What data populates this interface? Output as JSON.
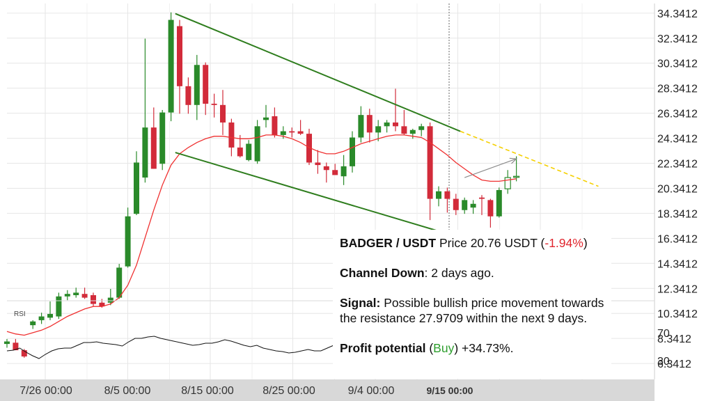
{
  "chart_data": {
    "type": "candlestick",
    "y_axis_labels": [
      "34.3412",
      "32.3412",
      "30.3412",
      "28.3412",
      "26.3412",
      "24.3412",
      "22.3412",
      "20.3412",
      "18.3412",
      "16.3412",
      "14.3412",
      "12.3412",
      "10.3412",
      "8.3412",
      "6.3412"
    ],
    "ylim": [
      4.9,
      35.0
    ],
    "x_axis_labels": [
      "7/26 00:00",
      "8/5 00:00",
      "8/15 00:00",
      "8/25 00:00",
      "9/4 00:00",
      "9/15 00:00"
    ],
    "candles": [
      {
        "o": 7.9,
        "h": 8.3,
        "l": 7.6,
        "c": 8.1
      },
      {
        "o": 8.0,
        "h": 8.3,
        "l": 7.5,
        "c": 7.4
      },
      {
        "o": 7.4,
        "h": 7.5,
        "l": 6.8,
        "c": 6.9
      },
      {
        "o": 9.4,
        "h": 9.8,
        "l": 9.1,
        "c": 9.7
      },
      {
        "o": 9.8,
        "h": 10.4,
        "l": 9.5,
        "c": 10.1
      },
      {
        "o": 10.0,
        "h": 11.3,
        "l": 9.8,
        "c": 10.3
      },
      {
        "o": 10.1,
        "h": 12.0,
        "l": 9.9,
        "c": 11.7
      },
      {
        "o": 11.7,
        "h": 12.2,
        "l": 11.4,
        "c": 11.9
      },
      {
        "o": 11.8,
        "h": 12.4,
        "l": 11.6,
        "c": 12.0
      },
      {
        "o": 11.9,
        "h": 12.4,
        "l": 11.5,
        "c": 11.6
      },
      {
        "o": 11.8,
        "h": 12.0,
        "l": 10.9,
        "c": 11.1
      },
      {
        "o": 11.2,
        "h": 11.5,
        "l": 10.8,
        "c": 10.9
      },
      {
        "o": 11.2,
        "h": 12.3,
        "l": 11.0,
        "c": 11.6
      },
      {
        "o": 11.6,
        "h": 14.3,
        "l": 11.5,
        "c": 14.0
      },
      {
        "o": 14.1,
        "h": 18.8,
        "l": 14.0,
        "c": 18.1
      },
      {
        "o": 18.3,
        "h": 23.3,
        "l": 18.2,
        "c": 22.4
      },
      {
        "o": 21.2,
        "h": 32.3,
        "l": 20.8,
        "c": 25.2
      },
      {
        "o": 25.2,
        "h": 26.8,
        "l": 21.9,
        "c": 21.9
      },
      {
        "o": 22.3,
        "h": 26.6,
        "l": 21.8,
        "c": 26.4
      },
      {
        "o": 26.4,
        "h": 34.4,
        "l": 25.7,
        "c": 33.8
      },
      {
        "o": 33.3,
        "h": 33.8,
        "l": 26.3,
        "c": 28.5
      },
      {
        "o": 28.5,
        "h": 29.2,
        "l": 26.3,
        "c": 27.0
      },
      {
        "o": 27.0,
        "h": 31.0,
        "l": 25.8,
        "c": 30.2
      },
      {
        "o": 30.2,
        "h": 30.4,
        "l": 26.2,
        "c": 27.1
      },
      {
        "o": 27.1,
        "h": 27.9,
        "l": 26.0,
        "c": 27.0
      },
      {
        "o": 27.0,
        "h": 28.2,
        "l": 24.6,
        "c": 25.6
      },
      {
        "o": 25.6,
        "h": 25.9,
        "l": 22.9,
        "c": 23.6
      },
      {
        "o": 23.6,
        "h": 24.6,
        "l": 22.8,
        "c": 22.9
      },
      {
        "o": 22.6,
        "h": 24.2,
        "l": 22.5,
        "c": 23.9
      },
      {
        "o": 22.5,
        "h": 25.8,
        "l": 22.3,
        "c": 25.3
      },
      {
        "o": 25.8,
        "h": 27.0,
        "l": 25.2,
        "c": 26.0
      },
      {
        "o": 26.1,
        "h": 26.8,
        "l": 24.4,
        "c": 24.6
      },
      {
        "o": 24.6,
        "h": 25.3,
        "l": 24.3,
        "c": 24.9
      },
      {
        "o": 24.9,
        "h": 25.2,
        "l": 24.4,
        "c": 24.8
      },
      {
        "o": 24.9,
        "h": 25.8,
        "l": 24.6,
        "c": 24.7
      },
      {
        "o": 24.7,
        "h": 25.1,
        "l": 22.2,
        "c": 22.4
      },
      {
        "o": 22.4,
        "h": 23.4,
        "l": 21.5,
        "c": 22.2
      },
      {
        "o": 22.1,
        "h": 22.4,
        "l": 20.8,
        "c": 21.8
      },
      {
        "o": 21.8,
        "h": 22.3,
        "l": 21.4,
        "c": 21.4
      },
      {
        "o": 21.3,
        "h": 23.0,
        "l": 20.6,
        "c": 22.1
      },
      {
        "o": 22.1,
        "h": 24.9,
        "l": 21.6,
        "c": 24.4
      },
      {
        "o": 24.4,
        "h": 26.9,
        "l": 24.0,
        "c": 26.2
      },
      {
        "o": 26.2,
        "h": 26.7,
        "l": 24.0,
        "c": 24.8
      },
      {
        "o": 24.8,
        "h": 25.8,
        "l": 24.1,
        "c": 25.3
      },
      {
        "o": 25.3,
        "h": 25.8,
        "l": 24.8,
        "c": 25.6
      },
      {
        "o": 25.6,
        "h": 28.3,
        "l": 24.9,
        "c": 25.3
      },
      {
        "o": 25.3,
        "h": 26.6,
        "l": 24.6,
        "c": 24.7
      },
      {
        "o": 24.7,
        "h": 25.1,
        "l": 24.3,
        "c": 25.0
      },
      {
        "o": 25.0,
        "h": 25.5,
        "l": 24.5,
        "c": 25.3
      },
      {
        "o": 25.3,
        "h": 25.6,
        "l": 17.8,
        "c": 19.5
      },
      {
        "o": 19.5,
        "h": 20.5,
        "l": 18.9,
        "c": 20.1
      },
      {
        "o": 20.1,
        "h": 20.4,
        "l": 18.4,
        "c": 19.5
      },
      {
        "o": 19.5,
        "h": 19.9,
        "l": 18.2,
        "c": 18.6
      },
      {
        "o": 18.6,
        "h": 19.6,
        "l": 18.3,
        "c": 19.4
      },
      {
        "o": 18.8,
        "h": 19.4,
        "l": 18.3,
        "c": 19.1
      },
      {
        "o": 19.6,
        "h": 19.8,
        "l": 18.2,
        "c": 19.5
      },
      {
        "o": 19.4,
        "h": 19.5,
        "l": 17.2,
        "c": 18.1
      },
      {
        "o": 18.1,
        "h": 20.4,
        "l": 18.0,
        "c": 20.2
      },
      {
        "o": 20.3,
        "h": 21.8,
        "l": 19.9,
        "c": 21.2
      },
      {
        "o": 21.3,
        "h": 22.9,
        "l": 20.9,
        "c": 21.3
      }
    ],
    "moving_average": [
      8.9,
      8.7,
      8.6,
      8.8,
      9.0,
      9.3,
      9.7,
      10.1,
      10.4,
      10.7,
      10.9,
      10.9,
      11.1,
      11.6,
      12.6,
      14.2,
      16.4,
      18.6,
      20.6,
      22.2,
      23.1,
      23.6,
      24.0,
      24.3,
      24.5,
      24.5,
      24.4,
      24.3,
      24.3,
      24.4,
      24.6,
      24.6,
      24.5,
      24.3,
      24.0,
      23.6,
      23.3,
      23.1,
      23.1,
      23.3,
      23.6,
      23.9,
      24.1,
      24.3,
      24.5,
      24.6,
      24.6,
      24.5,
      24.4,
      24.0,
      23.5,
      23.0,
      22.4,
      21.9,
      21.4,
      21.0,
      20.9,
      20.9,
      21.0,
      21.1
    ],
    "channel": {
      "upper": {
        "from": {
          "x": 19.5,
          "y": 34.3
        },
        "to": {
          "x": 52.5,
          "y": 24.9
        }
      },
      "lower": {
        "from": {
          "x": 19.5,
          "y": 23.2
        },
        "to": {
          "x": 52.5,
          "y": 16.4
        }
      },
      "upper_projection": {
        "from": {
          "x": 52.5,
          "y": 24.9
        },
        "to": {
          "x": 68.5,
          "y": 20.5
        }
      },
      "lower_projection": {
        "from": {
          "x": 52.5,
          "y": 16.4
        },
        "to": {
          "x": 65.0,
          "y": 13.3
        }
      }
    },
    "target_arrow": {
      "from": {
        "x": 53.0,
        "y": 21.2
      },
      "to": {
        "x": 59.0,
        "y": 22.7
      }
    },
    "rsi": {
      "label": "RSI",
      "y_axis_labels": [
        "70",
        "30"
      ],
      "ylim": [
        20,
        80
      ],
      "values": [
        44,
        45,
        48,
        42,
        37,
        33,
        39,
        44,
        47,
        48,
        48,
        52,
        56,
        56,
        57,
        55,
        54,
        53,
        51,
        57,
        62,
        62,
        64,
        65,
        62,
        60,
        58,
        56,
        54,
        52,
        53,
        55,
        55,
        57,
        60,
        58,
        55,
        52,
        50,
        52,
        48,
        46,
        44,
        43,
        41,
        42,
        44,
        46,
        44,
        44,
        48,
        52
      ]
    },
    "colors": {
      "bull": "#2a8a2a",
      "bear": "#d22b3a",
      "ma": "#ef3030",
      "channel": "#2e7d1d",
      "projection": "#f5d000",
      "arrow": "#8c8c8c"
    }
  },
  "info": {
    "pair": "BADGER / USDT",
    "price_label": "Price",
    "price": "20.76 USDT",
    "change_open": "(",
    "change": "-1.94%",
    "change_close": ")",
    "pattern_name": "Channel Down",
    "pattern_text": ": 2 days ago.",
    "signal_label": "Signal:",
    "signal_text": "Possible bullish price movement towards the resistance 27.9709 within the next 9 days.",
    "profit_label": "Profit potential",
    "profit_open": "(",
    "profit_side": "Buy",
    "profit_close": ")",
    "profit_value": "+34.73%."
  }
}
